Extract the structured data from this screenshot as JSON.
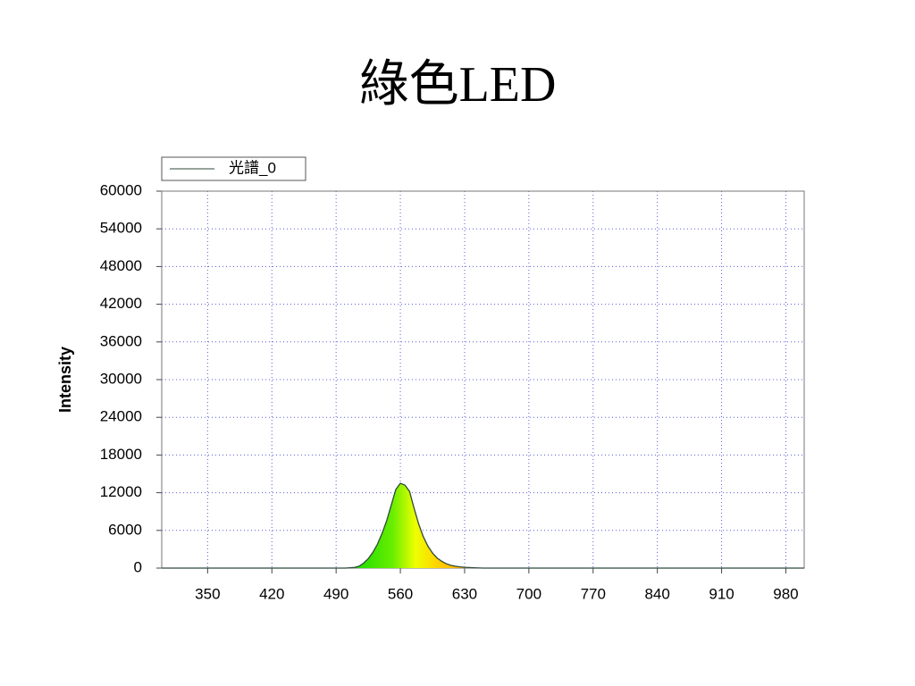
{
  "chart_data": {
    "type": "line",
    "title": "綠色LED",
    "ylabel": "Intensity",
    "x": [
      300,
      500,
      510,
      515,
      520,
      525,
      530,
      535,
      540,
      545,
      550,
      555,
      560,
      565,
      570,
      575,
      580,
      585,
      590,
      595,
      600,
      605,
      610,
      615,
      620,
      625,
      630,
      640,
      650,
      1000
    ],
    "series": [
      {
        "name": "光譜_0",
        "color": "#2f4a3a",
        "values": [
          0,
          0,
          100,
          300,
          800,
          1500,
          2500,
          3800,
          5500,
          7500,
          10000,
          12500,
          13500,
          13200,
          12200,
          9500,
          7000,
          5000,
          3500,
          2400,
          1600,
          1100,
          700,
          450,
          300,
          200,
          120,
          50,
          0,
          0
        ]
      }
    ],
    "xlim": [
      300,
      1000
    ],
    "xticks": [
      350,
      420,
      490,
      560,
      630,
      700,
      770,
      840,
      910,
      980
    ],
    "ylim": [
      0,
      60000
    ],
    "yticks": [
      0,
      6000,
      12000,
      18000,
      24000,
      30000,
      36000,
      42000,
      48000,
      54000,
      60000
    ],
    "grid": true,
    "legend": "top-left"
  }
}
